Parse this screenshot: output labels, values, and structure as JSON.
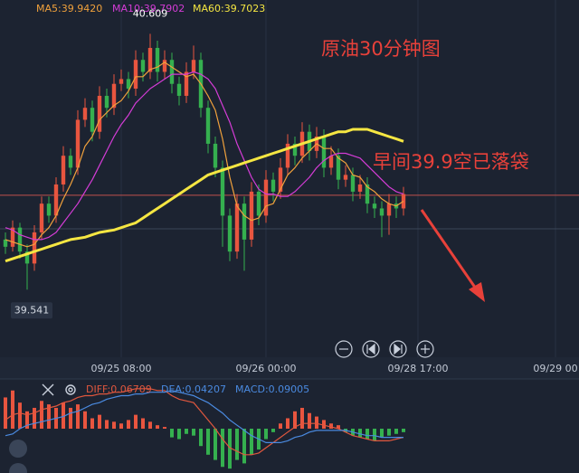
{
  "chart_data": [
    {
      "type": "candlestick",
      "annotations": [
        "原油30分钟图",
        "早间39.9空已落袋"
      ],
      "annotation_color": "#e8413a",
      "extreme_labels": [
        40.609,
        39.541
      ],
      "xlim": [
        -0.75,
        79.25
      ],
      "ylim": [
        39.24,
        40.75
      ],
      "xticks": [
        {
          "value": 16,
          "label": "09/25 08:00"
        },
        {
          "value": 36,
          "label": "09/26 00:00"
        },
        {
          "value": 57,
          "label": "09/28 17:00"
        },
        {
          "value": 76,
          "label": "09/29 00"
        }
      ],
      "ref_lines": [
        {
          "value": 39.935,
          "color": "#c0504d"
        },
        {
          "value": 39.795,
          "color": "#3a4658"
        }
      ],
      "colors": {
        "up": "#e8553f",
        "down": "#35b04f"
      },
      "ohlc": [
        [
          39.75,
          39.78,
          39.69,
          39.72
        ],
        [
          39.72,
          39.83,
          39.7,
          39.8
        ],
        [
          39.8,
          39.82,
          39.67,
          39.7
        ],
        [
          39.7,
          39.73,
          39.541,
          39.65
        ],
        [
          39.65,
          39.81,
          39.62,
          39.78
        ],
        [
          39.78,
          39.93,
          39.75,
          39.9
        ],
        [
          39.9,
          39.93,
          39.82,
          39.85
        ],
        [
          39.85,
          40.01,
          39.82,
          39.98
        ],
        [
          39.98,
          40.14,
          39.95,
          40.1
        ],
        [
          40.1,
          40.13,
          40.02,
          40.05
        ],
        [
          40.05,
          40.29,
          40.02,
          40.25
        ],
        [
          40.25,
          40.34,
          40.22,
          40.3
        ],
        [
          40.3,
          40.33,
          40.16,
          40.2
        ],
        [
          40.2,
          40.39,
          40.17,
          40.35
        ],
        [
          40.35,
          40.38,
          40.26,
          40.3
        ],
        [
          40.3,
          40.44,
          40.27,
          40.4
        ],
        [
          40.4,
          40.46,
          40.37,
          40.42
        ],
        [
          40.42,
          40.45,
          40.34,
          40.38
        ],
        [
          40.38,
          40.54,
          40.35,
          40.5
        ],
        [
          40.5,
          40.53,
          40.41,
          40.45
        ],
        [
          40.45,
          40.609,
          40.42,
          40.55
        ],
        [
          40.55,
          40.58,
          40.41,
          40.45
        ],
        [
          40.45,
          40.54,
          40.42,
          40.5
        ],
        [
          40.5,
          40.53,
          40.36,
          40.4
        ],
        [
          40.4,
          40.43,
          40.31,
          40.35
        ],
        [
          40.35,
          40.49,
          40.32,
          40.45
        ],
        [
          40.45,
          40.56,
          40.42,
          40.5
        ],
        [
          40.5,
          40.53,
          40.26,
          40.3
        ],
        [
          40.3,
          40.33,
          40.11,
          40.15
        ],
        [
          40.15,
          40.18,
          40.01,
          40.05
        ],
        [
          40.05,
          40.08,
          39.72,
          39.85
        ],
        [
          39.85,
          39.88,
          39.66,
          39.7
        ],
        [
          39.7,
          39.94,
          39.67,
          39.9
        ],
        [
          39.9,
          39.93,
          39.62,
          39.75
        ],
        [
          39.75,
          39.99,
          39.72,
          39.95
        ],
        [
          39.95,
          39.98,
          39.81,
          39.85
        ],
        [
          39.85,
          40.04,
          39.82,
          40.0
        ],
        [
          40.0,
          40.03,
          39.91,
          39.95
        ],
        [
          39.95,
          40.09,
          39.92,
          40.05
        ],
        [
          40.05,
          40.19,
          40.02,
          40.15
        ],
        [
          40.15,
          40.18,
          40.06,
          40.1
        ],
        [
          40.1,
          40.24,
          40.07,
          40.2
        ],
        [
          40.2,
          40.23,
          40.08,
          40.12
        ],
        [
          40.12,
          40.22,
          40.09,
          40.18
        ],
        [
          40.18,
          40.21,
          40.01,
          40.05
        ],
        [
          40.05,
          40.14,
          40.02,
          40.1
        ],
        [
          40.1,
          40.13,
          39.96,
          40.0
        ],
        [
          40.0,
          40.06,
          39.97,
          40.02
        ],
        [
          40.02,
          40.05,
          39.91,
          39.95
        ],
        [
          39.95,
          40.02,
          39.92,
          39.98
        ],
        [
          39.98,
          40.01,
          39.86,
          39.9
        ],
        [
          39.9,
          39.93,
          39.84,
          39.88
        ],
        [
          39.88,
          39.91,
          39.76,
          39.85
        ],
        [
          39.85,
          39.94,
          39.77,
          39.9
        ],
        [
          39.9,
          39.93,
          39.84,
          39.88
        ],
        [
          39.88,
          39.97,
          39.85,
          39.94
        ]
      ],
      "series": [
        {
          "name": "MA5:39.9420",
          "color": "#f0a13c",
          "width": 1.2,
          "values": [
            39.75,
            39.74,
            39.73,
            39.72,
            39.73,
            39.77,
            39.8,
            39.85,
            39.92,
            39.98,
            40.05,
            40.14,
            40.18,
            40.25,
            40.28,
            40.31,
            40.33,
            40.37,
            40.43,
            40.43,
            40.46,
            40.47,
            40.49,
            40.47,
            40.45,
            40.43,
            40.44,
            40.4,
            40.35,
            40.29,
            40.17,
            40.01,
            39.89,
            39.85,
            39.83,
            39.84,
            39.89,
            39.9,
            39.96,
            40.02,
            40.05,
            40.09,
            40.12,
            40.15,
            40.13,
            40.13,
            40.09,
            40.07,
            40.02,
            40.01,
            39.97,
            39.95,
            39.92,
            39.9,
            39.89,
            39.91
          ]
        },
        {
          "name": "MA10:39.7902",
          "color": "#d43cd6",
          "width": 1.2,
          "values": [
            39.8,
            39.79,
            39.77,
            39.76,
            39.75,
            39.75,
            39.76,
            39.78,
            39.82,
            39.86,
            39.9,
            39.95,
            40.0,
            40.06,
            40.12,
            40.18,
            40.23,
            40.27,
            40.32,
            40.35,
            40.38,
            40.4,
            40.42,
            40.44,
            40.44,
            40.44,
            40.45,
            40.44,
            40.42,
            40.38,
            40.31,
            40.24,
            40.15,
            40.08,
            40.01,
            39.96,
            39.94,
            39.94,
            39.93,
            39.93,
            39.95,
            39.98,
            40.01,
            40.05,
            40.08,
            40.1,
            40.11,
            40.11,
            40.1,
            40.09,
            40.06,
            40.03,
            40.0,
            39.97,
            39.95,
            39.94
          ]
        },
        {
          "name": "MA60:39.7023",
          "color": "#f5e642",
          "width": 3,
          "values": [
            39.66,
            39.67,
            39.68,
            39.69,
            39.7,
            39.71,
            39.72,
            39.73,
            39.74,
            39.75,
            39.755,
            39.76,
            39.77,
            39.78,
            39.785,
            39.79,
            39.8,
            39.81,
            39.82,
            39.84,
            39.86,
            39.88,
            39.9,
            39.92,
            39.94,
            39.96,
            39.98,
            40.0,
            40.02,
            40.03,
            40.04,
            40.05,
            40.06,
            40.07,
            40.08,
            40.09,
            40.1,
            40.11,
            40.12,
            40.13,
            40.14,
            40.15,
            40.16,
            40.17,
            40.18,
            40.19,
            40.2,
            40.2,
            40.21,
            40.21,
            40.21,
            40.2,
            40.19,
            40.18,
            40.17,
            40.16
          ]
        }
      ]
    },
    {
      "type": "macd",
      "xlim": [
        -0.75,
        79.25
      ],
      "ylim": [
        -0.25,
        0.25
      ],
      "colors": {
        "up": "#e8553f",
        "down": "#35b04f"
      },
      "histogram": {
        "name": "MACD:0.09005",
        "color": "#4a8ae0",
        "values": [
          0.18,
          0.22,
          0.15,
          0.1,
          0.12,
          0.16,
          0.14,
          0.12,
          0.15,
          0.12,
          0.14,
          0.1,
          0.06,
          0.08,
          0.05,
          0.04,
          0.03,
          0.05,
          0.08,
          0.06,
          0.04,
          0.02,
          0.01,
          -0.05,
          -0.06,
          -0.03,
          -0.04,
          -0.1,
          -0.15,
          -0.18,
          -0.22,
          -0.23,
          -0.18,
          -0.2,
          -0.15,
          -0.12,
          -0.06,
          -0.02,
          0.03,
          0.06,
          0.1,
          0.12,
          0.09,
          0.07,
          0.05,
          0.03,
          0.02,
          -0.02,
          -0.04,
          -0.05,
          -0.06,
          -0.07,
          -0.05,
          -0.04,
          -0.03,
          -0.02
        ]
      },
      "series": [
        {
          "name": "DIFF:0.06709",
          "color": "#e0573e",
          "values": [
            0.05,
            0.08,
            0.09,
            0.08,
            0.09,
            0.11,
            0.12,
            0.13,
            0.15,
            0.16,
            0.18,
            0.19,
            0.19,
            0.2,
            0.2,
            0.21,
            0.21,
            0.22,
            0.23,
            0.23,
            0.23,
            0.22,
            0.22,
            0.19,
            0.17,
            0.16,
            0.15,
            0.1,
            0.05,
            0.0,
            -0.06,
            -0.11,
            -0.13,
            -0.15,
            -0.15,
            -0.14,
            -0.11,
            -0.08,
            -0.05,
            -0.02,
            0.01,
            0.03,
            0.03,
            0.03,
            0.02,
            0.01,
            0.0,
            -0.02,
            -0.04,
            -0.05,
            -0.06,
            -0.07,
            -0.07,
            -0.07,
            -0.06,
            -0.05
          ]
        },
        {
          "name": "DEA:0.04207",
          "color": "#4a8ae0",
          "values": [
            -0.04,
            -0.03,
            0.0,
            0.02,
            0.03,
            0.04,
            0.05,
            0.06,
            0.07,
            0.09,
            0.1,
            0.12,
            0.14,
            0.15,
            0.17,
            0.18,
            0.19,
            0.19,
            0.2,
            0.2,
            0.21,
            0.21,
            0.21,
            0.22,
            0.21,
            0.2,
            0.19,
            0.17,
            0.15,
            0.12,
            0.09,
            0.05,
            0.02,
            -0.01,
            -0.04,
            -0.06,
            -0.08,
            -0.08,
            -0.08,
            -0.07,
            -0.05,
            -0.04,
            -0.02,
            -0.01,
            -0.01,
            -0.01,
            -0.01,
            -0.01,
            -0.02,
            -0.03,
            -0.04,
            -0.04,
            -0.05,
            -0.05,
            -0.05,
            -0.05
          ]
        }
      ]
    }
  ]
}
